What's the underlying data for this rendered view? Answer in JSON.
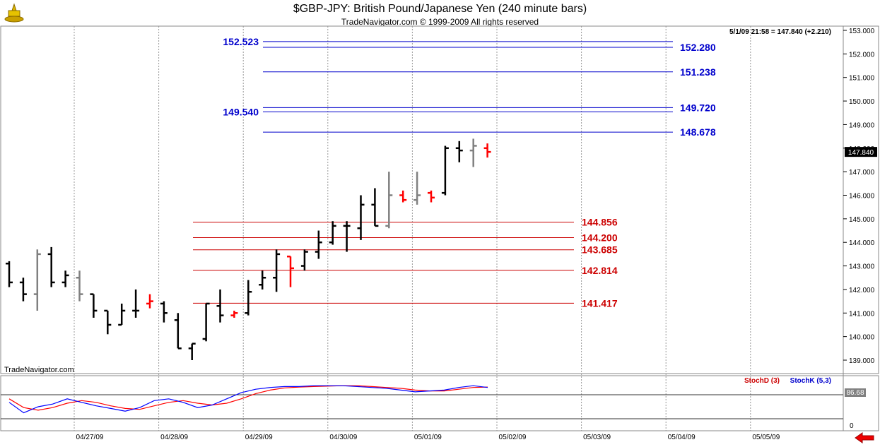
{
  "header": {
    "title": "$GBP-JPY:  British Pound/Japanese Yen  (240 minute bars)",
    "subtitle": "TradeNavigator.com © 1999-2009 All rights reserved",
    "quote": "5/1/09 21:58 = 147.840 (+2.210)",
    "watermark": "TradeNavigator.com"
  },
  "indicator": {
    "stoch_d_label": "StochD (3)",
    "stoch_k_label": "StochK (5,3)",
    "current_value": "86.68",
    "axis_glyph": "0"
  },
  "colors": {
    "up_bar": "#000000",
    "down_bar": "#ff0000",
    "neutral_bar": "#808080",
    "upper_levels": "#0000cc",
    "lower_levels": "#cc0000",
    "stoch_d": "#ff0000",
    "stoch_k": "#0000ff"
  },
  "chart_data": {
    "type": "ohlc",
    "y_ticks": [
      "153.000",
      "152.000",
      "151.000",
      "150.000",
      "149.000",
      "148.000",
      "147.000",
      "146.000",
      "145.000",
      "144.000",
      "143.000",
      "142.000",
      "141.000",
      "140.000",
      "139.000"
    ],
    "ylim": [
      138.6,
      153.1
    ],
    "x_ticks": [
      "04/27/09",
      "04/28/09",
      "04/29/09",
      "04/30/09",
      "05/01/09",
      "05/02/09",
      "05/03/09",
      "05/04/09",
      "05/05/09"
    ],
    "last_price": "147.840",
    "upper_levels": [
      {
        "value": 152.523,
        "label": "152.523",
        "side": "left"
      },
      {
        "value": 152.28,
        "label": "152.280",
        "side": "right"
      },
      {
        "value": 151.238,
        "label": "151.238",
        "side": "right"
      },
      {
        "value": 149.72,
        "label": "149.720",
        "side": "right"
      },
      {
        "value": 149.54,
        "label": "149.540",
        "side": "left"
      },
      {
        "value": 148.678,
        "label": "148.678",
        "side": "right"
      }
    ],
    "lower_levels": [
      {
        "value": 144.856,
        "label": "144.856"
      },
      {
        "value": 144.2,
        "label": "144.200"
      },
      {
        "value": 143.685,
        "label": "143.685"
      },
      {
        "value": 142.814,
        "label": "142.814"
      },
      {
        "value": 141.417,
        "label": "141.417"
      }
    ],
    "bars": [
      {
        "h": 143.2,
        "l": 142.1,
        "o": 143.1,
        "c": 142.3,
        "t": "up"
      },
      {
        "h": 142.5,
        "l": 141.5,
        "o": 142.3,
        "c": 141.8,
        "t": "up"
      },
      {
        "h": 143.7,
        "l": 141.1,
        "o": 141.8,
        "c": 143.5,
        "t": "neutral"
      },
      {
        "h": 143.8,
        "l": 142.1,
        "o": 143.5,
        "c": 142.3,
        "t": "up"
      },
      {
        "h": 142.8,
        "l": 142.1,
        "o": 142.3,
        "c": 142.6,
        "t": "up"
      },
      {
        "h": 142.8,
        "l": 141.5,
        "o": 142.5,
        "c": 141.8,
        "t": "neutral"
      },
      {
        "h": 141.8,
        "l": 140.8,
        "o": 141.8,
        "c": 141.1,
        "t": "up"
      },
      {
        "h": 141.1,
        "l": 140.1,
        "o": 141.1,
        "c": 140.5,
        "t": "up"
      },
      {
        "h": 141.4,
        "l": 140.5,
        "o": 140.5,
        "c": 141.1,
        "t": "up"
      },
      {
        "h": 142.0,
        "l": 140.8,
        "o": 141.1,
        "c": 141.1,
        "t": "up"
      },
      {
        "h": 141.8,
        "l": 141.2,
        "o": 141.4,
        "c": 141.5,
        "t": "down"
      },
      {
        "h": 141.5,
        "l": 140.6,
        "o": 141.4,
        "c": 141.0,
        "t": "up"
      },
      {
        "h": 141.0,
        "l": 139.5,
        "o": 140.7,
        "c": 139.5,
        "t": "up"
      },
      {
        "h": 139.7,
        "l": 139.0,
        "o": 139.5,
        "c": 139.7,
        "t": "up"
      },
      {
        "h": 141.4,
        "l": 139.8,
        "o": 139.9,
        "c": 141.4,
        "t": "up"
      },
      {
        "h": 142.0,
        "l": 140.6,
        "o": 141.3,
        "c": 140.9,
        "t": "up"
      },
      {
        "h": 141.1,
        "l": 140.8,
        "o": 140.9,
        "c": 141.0,
        "t": "down"
      },
      {
        "h": 142.4,
        "l": 140.9,
        "o": 141.0,
        "c": 141.9,
        "t": "up"
      },
      {
        "h": 142.8,
        "l": 142.0,
        "o": 142.2,
        "c": 142.5,
        "t": "up"
      },
      {
        "h": 143.7,
        "l": 141.9,
        "o": 142.5,
        "c": 143.5,
        "t": "up"
      },
      {
        "h": 143.4,
        "l": 142.1,
        "o": 143.4,
        "c": 142.9,
        "t": "down"
      },
      {
        "h": 143.7,
        "l": 142.8,
        "o": 143.0,
        "c": 143.6,
        "t": "up"
      },
      {
        "h": 144.5,
        "l": 143.3,
        "o": 143.6,
        "c": 144.0,
        "t": "up"
      },
      {
        "h": 144.9,
        "l": 143.9,
        "o": 144.0,
        "c": 144.7,
        "t": "up"
      },
      {
        "h": 144.9,
        "l": 143.6,
        "o": 144.7,
        "c": 144.7,
        "t": "up"
      },
      {
        "h": 146.0,
        "l": 144.1,
        "o": 144.6,
        "c": 145.6,
        "t": "up"
      },
      {
        "h": 146.3,
        "l": 144.7,
        "o": 145.6,
        "c": 144.7,
        "t": "up"
      },
      {
        "h": 147.0,
        "l": 144.6,
        "o": 144.7,
        "c": 146.0,
        "t": "neutral"
      },
      {
        "h": 146.2,
        "l": 145.7,
        "o": 146.0,
        "c": 145.8,
        "t": "down"
      },
      {
        "h": 147.0,
        "l": 145.6,
        "o": 145.8,
        "c": 146.0,
        "t": "neutral"
      },
      {
        "h": 146.2,
        "l": 145.7,
        "o": 146.1,
        "c": 145.9,
        "t": "down"
      },
      {
        "h": 148.1,
        "l": 146.0,
        "o": 146.1,
        "c": 148.0,
        "t": "up"
      },
      {
        "h": 148.3,
        "l": 147.4,
        "o": 148.0,
        "c": 147.9,
        "t": "up"
      },
      {
        "h": 148.4,
        "l": 147.2,
        "o": 147.9,
        "c": 148.1,
        "t": "neutral"
      },
      {
        "h": 148.2,
        "l": 147.6,
        "o": 148.0,
        "c": 147.84,
        "t": "down"
      }
    ],
    "stoch_k": [
      52,
      28,
      42,
      48,
      60,
      52,
      44,
      38,
      32,
      40,
      56,
      60,
      52,
      40,
      46,
      60,
      74,
      82,
      86,
      88,
      88,
      90,
      90,
      90,
      88,
      86,
      84,
      80,
      76,
      78,
      80,
      86,
      90,
      86
    ],
    "stoch_d": [
      60,
      40,
      34,
      40,
      50,
      56,
      52,
      44,
      38,
      36,
      44,
      52,
      56,
      50,
      46,
      50,
      60,
      72,
      80,
      85,
      87,
      88,
      89,
      90,
      90,
      88,
      86,
      84,
      80,
      78,
      78,
      82,
      86,
      87
    ]
  }
}
